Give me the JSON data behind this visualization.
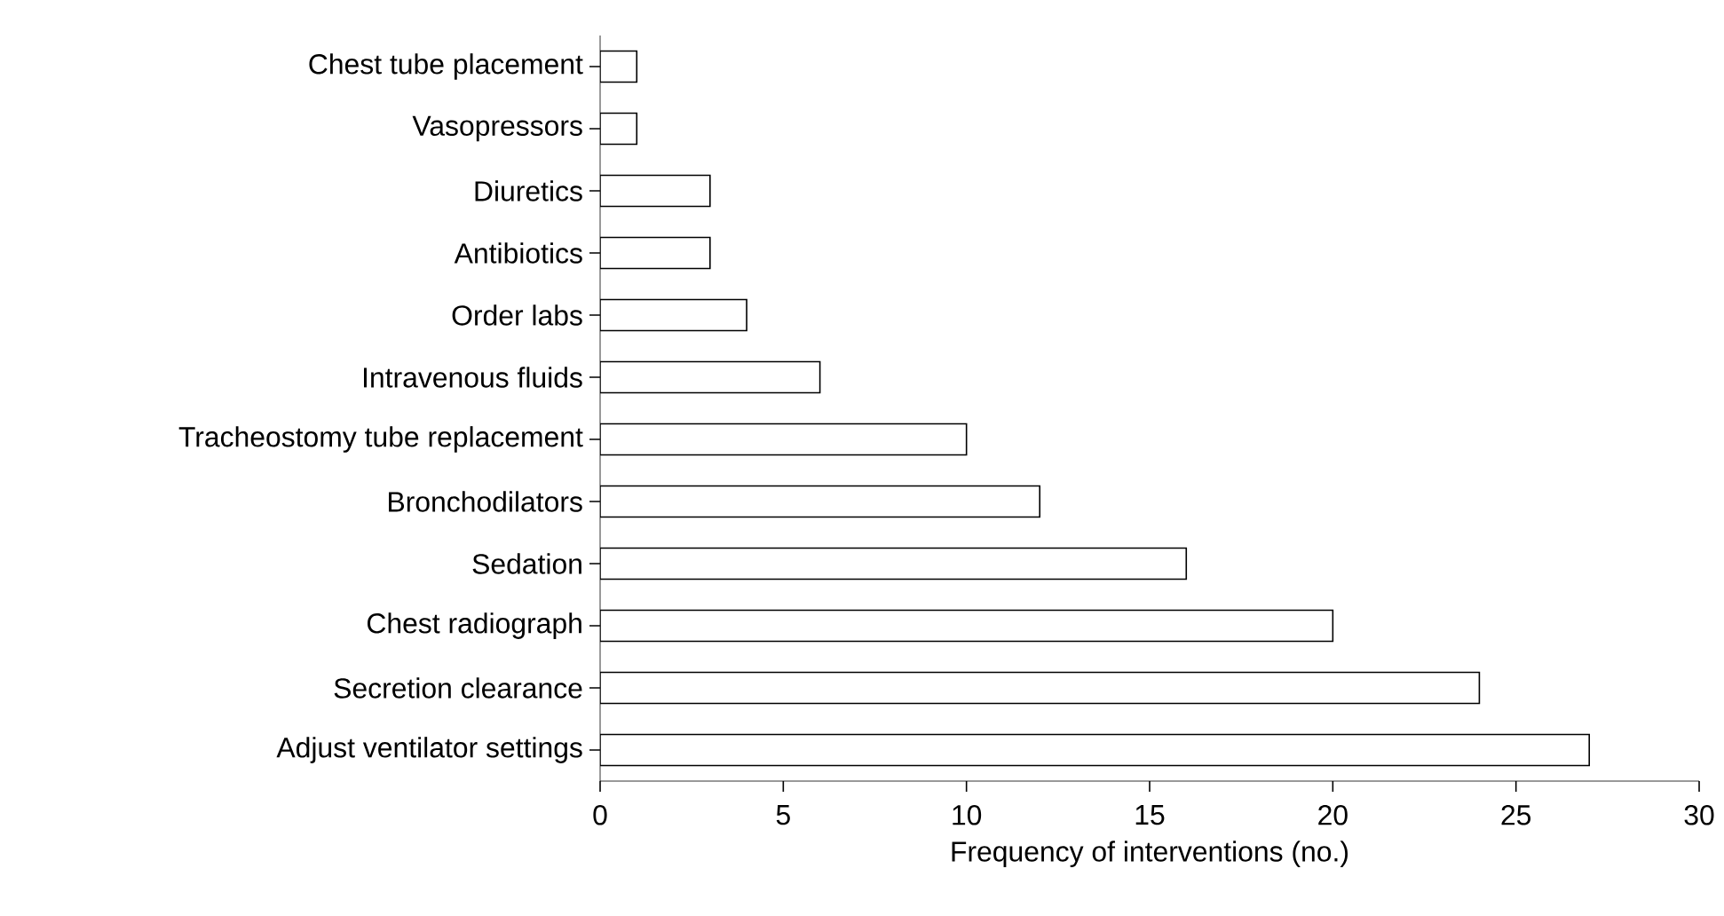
{
  "chart_data": {
    "type": "bar",
    "orientation": "horizontal",
    "xlabel": "Frequency of interventions (no.)",
    "categories": [
      "Chest tube placement",
      "Vasopressors",
      "Diuretics",
      "Antibiotics",
      "Order labs",
      "Intravenous fluids",
      "Tracheostomy tube replacement",
      "Bronchodilators",
      "Sedation",
      "Chest radiograph",
      "Secretion clearance",
      "Adjust ventilator settings"
    ],
    "values": [
      1,
      1,
      3,
      3,
      4,
      6,
      10,
      12,
      16,
      20,
      24,
      27
    ],
    "color": "#ffffff",
    "xlim": [
      0,
      30
    ],
    "xticks": [
      0,
      5,
      10,
      15,
      20,
      25,
      30
    ]
  }
}
